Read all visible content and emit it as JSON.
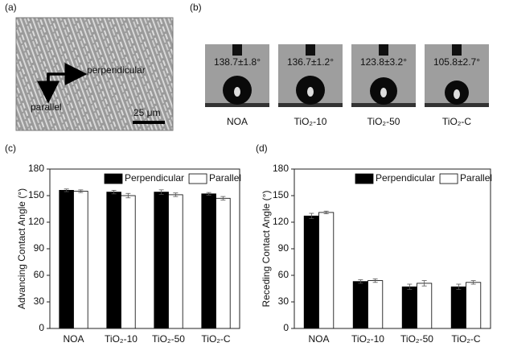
{
  "panel_labels": [
    "(a)",
    "(b)",
    "(c)",
    "(d)"
  ],
  "image_a": {
    "directions": [
      "perpendicular",
      "parallel"
    ],
    "scale_bar": "25 μm"
  },
  "image_b": {
    "angles": [
      "138.7±1.8°",
      "136.7±1.2°",
      "123.8±3.2°",
      "105.8±2.7°"
    ],
    "names": [
      "NOA",
      "TiO₂-10",
      "TiO₂-50",
      "TiO₂-C"
    ]
  },
  "chart_data": [
    {
      "type": "bar",
      "ylabel": "Advancing Contact Angle (°)",
      "categories": [
        "NOA",
        "TiO₂-10",
        "TiO₂-50",
        "TiO₂-C"
      ],
      "series": [
        {
          "name": "Perpendicular",
          "color": "#000000",
          "values": [
            156,
            154,
            154,
            152
          ],
          "errors": [
            1.5,
            2,
            2.5,
            1.5
          ]
        },
        {
          "name": "Parallel",
          "color": "#ffffff",
          "values": [
            155,
            150,
            151,
            147
          ],
          "errors": [
            1.5,
            2.5,
            2,
            2
          ]
        }
      ],
      "ylim": [
        0,
        180
      ],
      "yticks": [
        0,
        30,
        60,
        90,
        120,
        150,
        180
      ],
      "legend": "upper right"
    },
    {
      "type": "bar",
      "ylabel": "Receding Contact Angle (°)",
      "categories": [
        "NOA",
        "TiO₂-10",
        "TiO₂-50",
        "TiO₂-C"
      ],
      "series": [
        {
          "name": "Perpendicular",
          "color": "#000000",
          "values": [
            127,
            53,
            47,
            47
          ],
          "errors": [
            3,
            2,
            3,
            3
          ]
        },
        {
          "name": "Parallel",
          "color": "#ffffff",
          "values": [
            131,
            54,
            51,
            52
          ],
          "errors": [
            1.5,
            2,
            3,
            2
          ]
        }
      ],
      "ylim": [
        0,
        180
      ],
      "yticks": [
        0,
        30,
        60,
        90,
        120,
        150,
        180
      ],
      "legend": "upper right"
    }
  ]
}
